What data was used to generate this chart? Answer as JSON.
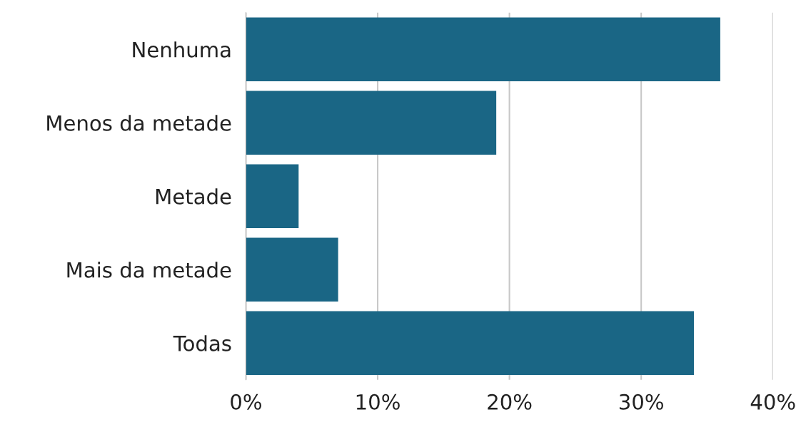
{
  "chart_data": {
    "type": "bar",
    "orientation": "horizontal",
    "categories": [
      "Nenhuma",
      "Menos da metade",
      "Metade",
      "Mais da metade",
      "Todas"
    ],
    "values": [
      36,
      19,
      4,
      7,
      34
    ],
    "color": "#1a6685",
    "xlim": [
      0,
      40
    ],
    "xticks": [
      {
        "value": 0,
        "label": "0%"
      },
      {
        "value": 10,
        "label": "10%"
      },
      {
        "value": 20,
        "label": "20%"
      },
      {
        "value": 30,
        "label": "30%"
      },
      {
        "value": 40,
        "label": "40%"
      }
    ],
    "grid": "x",
    "legend": false
  }
}
